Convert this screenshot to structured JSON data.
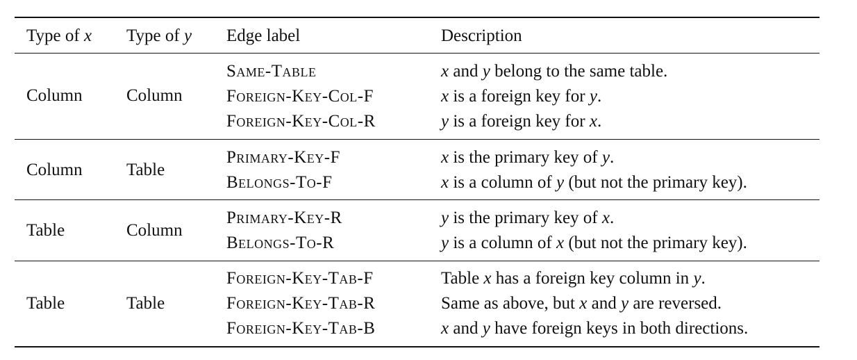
{
  "headers": {
    "type_x_prefix": "Type of ",
    "type_x_var": "x",
    "type_y_prefix": "Type of ",
    "type_y_var": "y",
    "edge_label": "Edge label",
    "description": "Description"
  },
  "groups": [
    {
      "type_x": "Column",
      "type_y": "Column",
      "rows": [
        {
          "label": "Same-Table",
          "desc": [
            [
              "v",
              "x"
            ],
            [
              "t",
              " and "
            ],
            [
              "v",
              "y"
            ],
            [
              "t",
              " belong to the same table."
            ]
          ]
        },
        {
          "label": "Foreign-Key-Col-F",
          "desc": [
            [
              "v",
              "x"
            ],
            [
              "t",
              " is a foreign key for "
            ],
            [
              "v",
              "y"
            ],
            [
              "t",
              "."
            ]
          ]
        },
        {
          "label": "Foreign-Key-Col-R",
          "desc": [
            [
              "v",
              "y"
            ],
            [
              "t",
              " is a foreign key for "
            ],
            [
              "v",
              "x"
            ],
            [
              "t",
              "."
            ]
          ]
        }
      ]
    },
    {
      "type_x": "Column",
      "type_y": "Table",
      "rows": [
        {
          "label": "Primary-Key-F",
          "desc": [
            [
              "v",
              "x"
            ],
            [
              "t",
              " is the primary key of "
            ],
            [
              "v",
              "y"
            ],
            [
              "t",
              "."
            ]
          ]
        },
        {
          "label": "Belongs-To-F",
          "desc": [
            [
              "v",
              "x"
            ],
            [
              "t",
              " is a column of "
            ],
            [
              "v",
              "y"
            ],
            [
              "t",
              " (but not the primary key)."
            ]
          ]
        }
      ]
    },
    {
      "type_x": "Table",
      "type_y": "Column",
      "rows": [
        {
          "label": "Primary-Key-R",
          "desc": [
            [
              "v",
              "y"
            ],
            [
              "t",
              " is the primary key of "
            ],
            [
              "v",
              "x"
            ],
            [
              "t",
              "."
            ]
          ]
        },
        {
          "label": "Belongs-To-R",
          "desc": [
            [
              "v",
              "y"
            ],
            [
              "t",
              " is a column of "
            ],
            [
              "v",
              "x"
            ],
            [
              "t",
              " (but not the primary key)."
            ]
          ]
        }
      ]
    },
    {
      "type_x": "Table",
      "type_y": "Table",
      "rows": [
        {
          "label": "Foreign-Key-Tab-F",
          "desc": [
            [
              "t",
              "Table "
            ],
            [
              "v",
              "x"
            ],
            [
              "t",
              " has a foreign key column in "
            ],
            [
              "v",
              "y"
            ],
            [
              "t",
              "."
            ]
          ]
        },
        {
          "label": "Foreign-Key-Tab-R",
          "desc": [
            [
              "t",
              "Same as above, but "
            ],
            [
              "v",
              "x"
            ],
            [
              "t",
              " and "
            ],
            [
              "v",
              "y"
            ],
            [
              "t",
              " are reversed."
            ]
          ]
        },
        {
          "label": "Foreign-Key-Tab-B",
          "desc": [
            [
              "v",
              "x"
            ],
            [
              "t",
              " and "
            ],
            [
              "v",
              "y"
            ],
            [
              "t",
              " have foreign keys in both directions."
            ]
          ]
        }
      ]
    }
  ]
}
